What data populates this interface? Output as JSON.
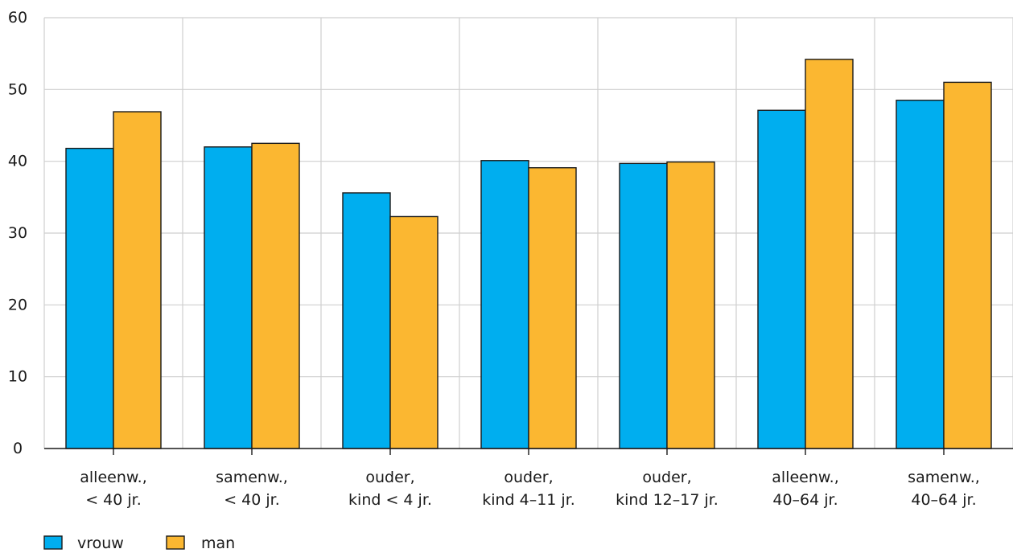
{
  "chart_data": {
    "type": "bar",
    "title": "",
    "xlabel": "",
    "ylabel": "",
    "ylim": [
      0,
      60
    ],
    "yticks": [
      0,
      10,
      20,
      30,
      40,
      50,
      60
    ],
    "grid": true,
    "legend_position": "bottom-left",
    "categories": [
      [
        "alleenw.,",
        "< 40 jr."
      ],
      [
        "samenw.,",
        "< 40 jr."
      ],
      [
        "ouder,",
        "kind < 4 jr."
      ],
      [
        "ouder,",
        "kind 4–11 jr."
      ],
      [
        "ouder,",
        "kind 12–17 jr."
      ],
      [
        "alleenw.,",
        "40–64 jr."
      ],
      [
        "samenw.,",
        "40–64 jr."
      ]
    ],
    "series": [
      {
        "name": "vrouw",
        "color": "#00aeef",
        "values": [
          41.8,
          42.0,
          35.6,
          40.1,
          39.7,
          47.1,
          48.5
        ]
      },
      {
        "name": "man",
        "color": "#fbb731",
        "values": [
          46.9,
          42.5,
          32.3,
          39.1,
          39.9,
          54.2,
          51.0
        ]
      }
    ]
  }
}
